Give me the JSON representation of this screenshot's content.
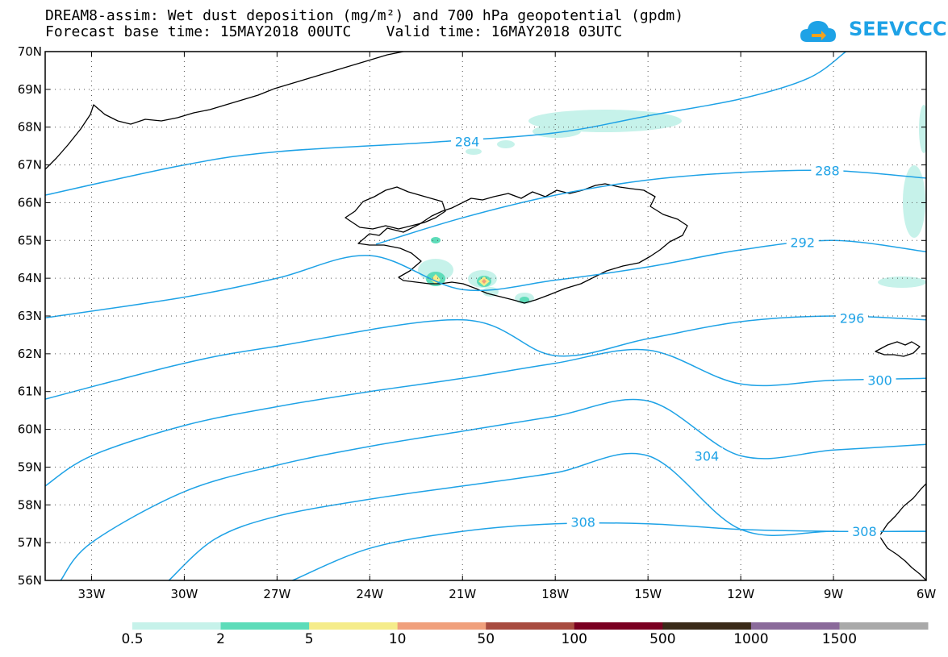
{
  "title": {
    "line1": "DREAM8-assim: Wet dust deposition (mg/m²) and 700 hPa geopotential (gpdm)",
    "line2": "Forecast base time: 15MAY2018 00UTC    Valid time: 16MAY2018 03UTC"
  },
  "logo": {
    "text": "SEEVCCC",
    "icon": "cloud-icon",
    "color": "#1ea2e6"
  },
  "map": {
    "lat_labels": [
      "70N",
      "69N",
      "68N",
      "67N",
      "66N",
      "65N",
      "64N",
      "63N",
      "62N",
      "61N",
      "60N",
      "59N",
      "58N",
      "57N",
      "56N"
    ],
    "lon_labels": [
      "33W",
      "30W",
      "27W",
      "24W",
      "21W",
      "18W",
      "15W",
      "12W",
      "9W",
      "6W"
    ],
    "lon_range": [
      -34.5,
      -6
    ],
    "lat_range": [
      56,
      70
    ],
    "contour_color": "#1ea2e6",
    "contours": [
      {
        "label": "284",
        "points": [
          [
            -34.5,
            66.2
          ],
          [
            -30,
            67.0
          ],
          [
            -27,
            67.35
          ],
          [
            -22,
            67.6
          ],
          [
            -18,
            67.85
          ],
          [
            -15,
            68.3
          ],
          [
            -12,
            68.75
          ],
          [
            -9.8,
            69.3
          ],
          [
            -8.6,
            70.0
          ]
        ]
      },
      {
        "label": "288",
        "points": [
          [
            -23.8,
            64.9
          ],
          [
            -21,
            65.6
          ],
          [
            -18,
            66.2
          ],
          [
            -15,
            66.6
          ],
          [
            -12,
            66.8
          ],
          [
            -9,
            66.85
          ],
          [
            -6,
            66.65
          ]
        ]
      },
      {
        "label": "292",
        "points": [
          [
            -34.5,
            62.95
          ],
          [
            -30,
            63.5
          ],
          [
            -27,
            64.0
          ],
          [
            -24,
            64.6
          ],
          [
            -21,
            63.7
          ],
          [
            -18,
            63.95
          ],
          [
            -15,
            64.3
          ],
          [
            -12,
            64.75
          ],
          [
            -9,
            65.0
          ],
          [
            -6,
            64.7
          ]
        ]
      },
      {
        "label": "296",
        "points": [
          [
            -34.5,
            60.8
          ],
          [
            -30,
            61.75
          ],
          [
            -27,
            62.2
          ],
          [
            -21,
            62.9
          ],
          [
            -18,
            61.95
          ],
          [
            -15,
            62.4
          ],
          [
            -12,
            62.85
          ],
          [
            -9,
            63.0
          ],
          [
            -6,
            62.9
          ]
        ]
      },
      {
        "label": "300",
        "points": [
          [
            -34.5,
            58.5
          ],
          [
            -33,
            59.3
          ],
          [
            -30,
            60.1
          ],
          [
            -27,
            60.6
          ],
          [
            -24,
            61.0
          ],
          [
            -21,
            61.35
          ],
          [
            -18,
            61.75
          ],
          [
            -15,
            62.1
          ],
          [
            -12,
            61.2
          ],
          [
            -9,
            61.3
          ],
          [
            -6,
            61.35
          ]
        ]
      },
      {
        "label": "304",
        "points": [
          [
            -34,
            56.0
          ],
          [
            -33,
            57.0
          ],
          [
            -30,
            58.35
          ],
          [
            -27,
            59.05
          ],
          [
            -24,
            59.55
          ],
          [
            -21,
            59.95
          ],
          [
            -18,
            60.35
          ],
          [
            -15,
            60.75
          ],
          [
            -12,
            59.3
          ],
          [
            -9,
            59.45
          ],
          [
            -6,
            59.6
          ]
        ]
      },
      {
        "label": "308",
        "points": [
          [
            -30.5,
            56.0
          ],
          [
            -29,
            57.1
          ],
          [
            -27,
            57.7
          ],
          [
            -24,
            58.15
          ],
          [
            -21,
            58.5
          ],
          [
            -18,
            58.85
          ],
          [
            -15,
            59.3
          ],
          [
            -12,
            57.35
          ],
          [
            -9,
            57.3
          ],
          [
            -6,
            57.3
          ]
        ]
      },
      {
        "label": "",
        "points": [
          [
            -26.5,
            56.0
          ],
          [
            -24,
            56.85
          ],
          [
            -21,
            57.3
          ],
          [
            -18,
            57.5
          ],
          [
            -15,
            57.5
          ],
          [
            -12,
            57.35
          ],
          [
            -9,
            57.3
          ],
          [
            -6,
            57.3
          ]
        ]
      }
    ],
    "contour_labels": [
      {
        "text": "284",
        "lon": -20.85,
        "lat": 67.62
      },
      {
        "text": "288",
        "lon": -9.2,
        "lat": 66.85
      },
      {
        "text": "292",
        "lon": -10.0,
        "lat": 64.95
      },
      {
        "text": "296",
        "lon": -8.4,
        "lat": 62.95
      },
      {
        "text": "300",
        "lon": -7.5,
        "lat": 61.3
      },
      {
        "text": "304",
        "lon": -13.1,
        "lat": 59.3
      },
      {
        "text": "308",
        "lon": -17.1,
        "lat": 57.55
      },
      {
        "text": "308",
        "lon": -8.0,
        "lat": 57.3
      }
    ]
  },
  "colorbar": {
    "labels": [
      "0.5",
      "2",
      "5",
      "10",
      "50",
      "100",
      "500",
      "1000",
      "1500"
    ],
    "colors": [
      "#c6f2ea",
      "#5ddcb9",
      "#f5ec8a",
      "#f0a07c",
      "#a84c40",
      "#7a0021",
      "#3a2a18",
      "#8a6a9a",
      "#a9a9a9"
    ]
  }
}
